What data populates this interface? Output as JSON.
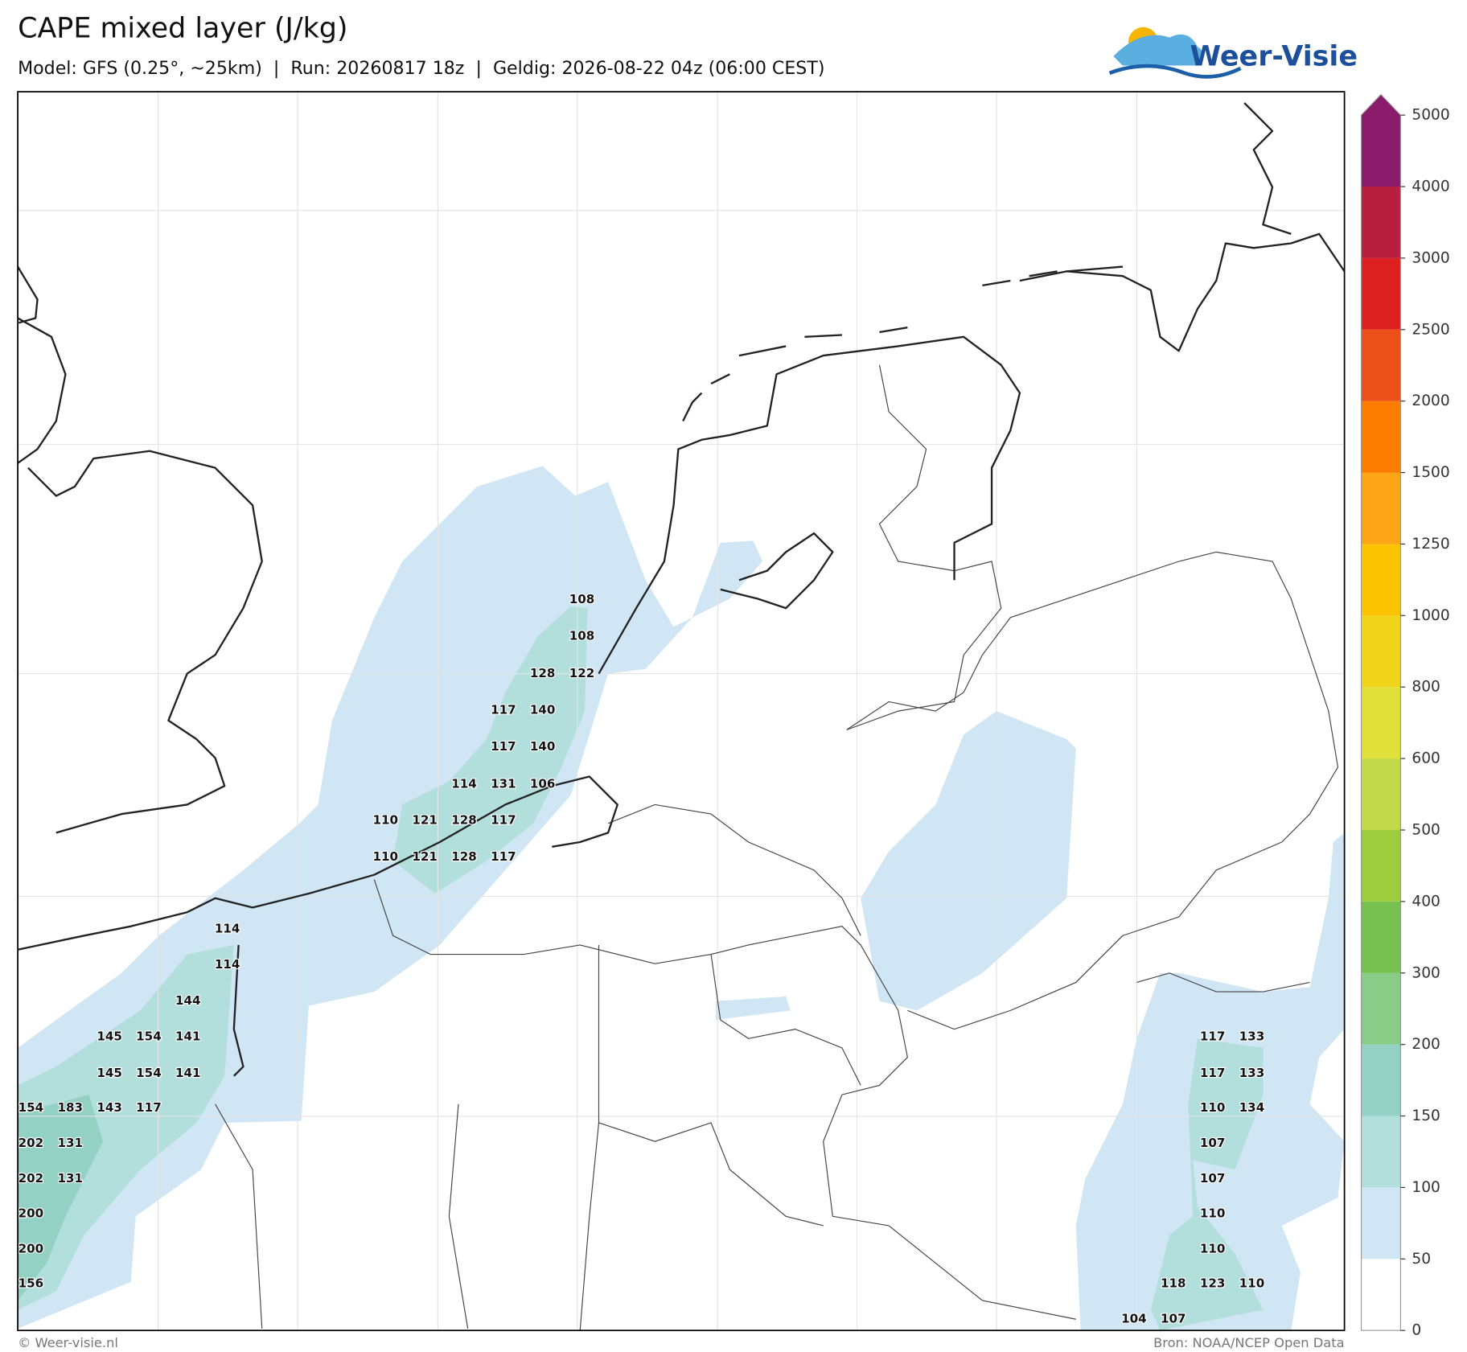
{
  "header": {
    "title": "CAPE mixed layer (J/kg)",
    "subtitle": "Model: GFS (0.25°, ~25km)  |  Run: 20260817 18z  |  Geldig: 2026-08-22 04z (06:00 CEST)",
    "logo": "Weer-Visie"
  },
  "map": {
    "labels": [
      108,
      108,
      128,
      122,
      117,
      140,
      117,
      140,
      114,
      131,
      106,
      110,
      121,
      128,
      117,
      110,
      121,
      128,
      117,
      114,
      114,
      144,
      145,
      154,
      141,
      145,
      154,
      141,
      154,
      183,
      143,
      117,
      202,
      131,
      202,
      131,
      200,
      200,
      156,
      117,
      133,
      117,
      133,
      110,
      134,
      107,
      107,
      110,
      110,
      118,
      123,
      110,
      104,
      107
    ]
  },
  "colorbar": {
    "ticks": [
      0,
      50,
      100,
      150,
      200,
      300,
      400,
      500,
      600,
      800,
      1000,
      1250,
      1500,
      2000,
      2500,
      3000,
      4000,
      5000
    ],
    "colors": [
      "#ffffff",
      "#d0e6f5",
      "#b2dfdb",
      "#92d1c3",
      "#88cc88",
      "#78c04f",
      "#9dcc3f",
      "#c2da4a",
      "#dfe03a",
      "#f2d41a",
      "#fcc400",
      "#fca518",
      "#fa7d00",
      "#ea5018",
      "#dc2020",
      "#b81e40",
      "#8a1a6a"
    ]
  },
  "footer": {
    "left": "© Weer-visie.nl",
    "right": "Bron: NOAA/NCEP Open Data"
  }
}
